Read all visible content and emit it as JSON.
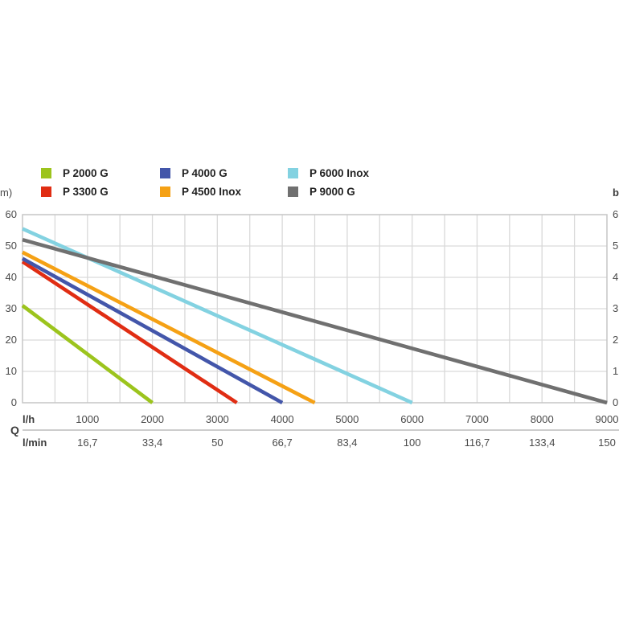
{
  "chart_data": {
    "type": "line",
    "title": "",
    "legend_position": "top",
    "grid": true,
    "x_axis": {
      "quantity_symbol": "Q",
      "unit_primary": "l/h",
      "unit_secondary": "l/min",
      "range_lh": [
        0,
        9000
      ],
      "grid_step_lh": 500,
      "tick_values_lh": [
        1000,
        2000,
        3000,
        4000,
        5000,
        6000,
        7000,
        8000,
        9000
      ],
      "tick_labels_lh": [
        "1000",
        "2000",
        "3000",
        "4000",
        "5000",
        "6000",
        "7000",
        "8000",
        "9000"
      ],
      "tick_labels_lmin": [
        "16,7",
        "33,4",
        "50",
        "66,7",
        "83,4",
        "100",
        "116,7",
        "133,4",
        "150"
      ]
    },
    "y_axis_left": {
      "unit_label_visible": "m)",
      "range_m": [
        0,
        60
      ],
      "grid_step_m": 10,
      "tick_values_m": [
        60,
        50,
        40,
        30,
        20,
        10,
        0
      ],
      "tick_labels": [
        "60",
        "50",
        "40",
        "30",
        "20",
        "10",
        "0"
      ]
    },
    "y_axis_right": {
      "unit_label_visible": "b",
      "range_bar": [
        0,
        6
      ],
      "tick_values_m": [
        60,
        50,
        40,
        30,
        20,
        10,
        0
      ],
      "tick_labels": [
        "6",
        "5",
        "4",
        "3",
        "2",
        "1",
        "0"
      ]
    },
    "series": [
      {
        "name": "P 2000 G",
        "color": "#9cc41d",
        "max_head_m": 31,
        "max_flow_lh": 2000,
        "points_lh_m": [
          [
            0,
            31
          ],
          [
            2000,
            0
          ]
        ]
      },
      {
        "name": "P 3300 G",
        "color": "#e02d13",
        "max_head_m": 45,
        "max_flow_lh": 3300,
        "points_lh_m": [
          [
            0,
            45
          ],
          [
            3300,
            0
          ]
        ]
      },
      {
        "name": "P 4000 G",
        "color": "#4356aa",
        "max_head_m": 46,
        "max_flow_lh": 4000,
        "points_lh_m": [
          [
            0,
            46
          ],
          [
            4000,
            0
          ]
        ]
      },
      {
        "name": "P 4500 Inox",
        "color": "#f5a115",
        "max_head_m": 48,
        "max_flow_lh": 4500,
        "points_lh_m": [
          [
            0,
            48
          ],
          [
            4500,
            0
          ]
        ]
      },
      {
        "name": "P 6000 Inox",
        "color": "#83d2e1",
        "max_head_m": 55.5,
        "max_flow_lh": 6000,
        "points_lh_m": [
          [
            0,
            55.5
          ],
          [
            6000,
            0
          ]
        ]
      },
      {
        "name": "P 9000 G",
        "color": "#707070",
        "max_head_m": 52,
        "max_flow_lh": 9000,
        "points_lh_m": [
          [
            0,
            52
          ],
          [
            9000,
            0
          ]
        ]
      }
    ],
    "colors": {
      "grid_line": "#d9d9d9",
      "plot_border": "#c6c6c6",
      "axis_text": "#4a4a4a",
      "legend_text": "#222222",
      "separator_line": "#cccccc"
    }
  }
}
